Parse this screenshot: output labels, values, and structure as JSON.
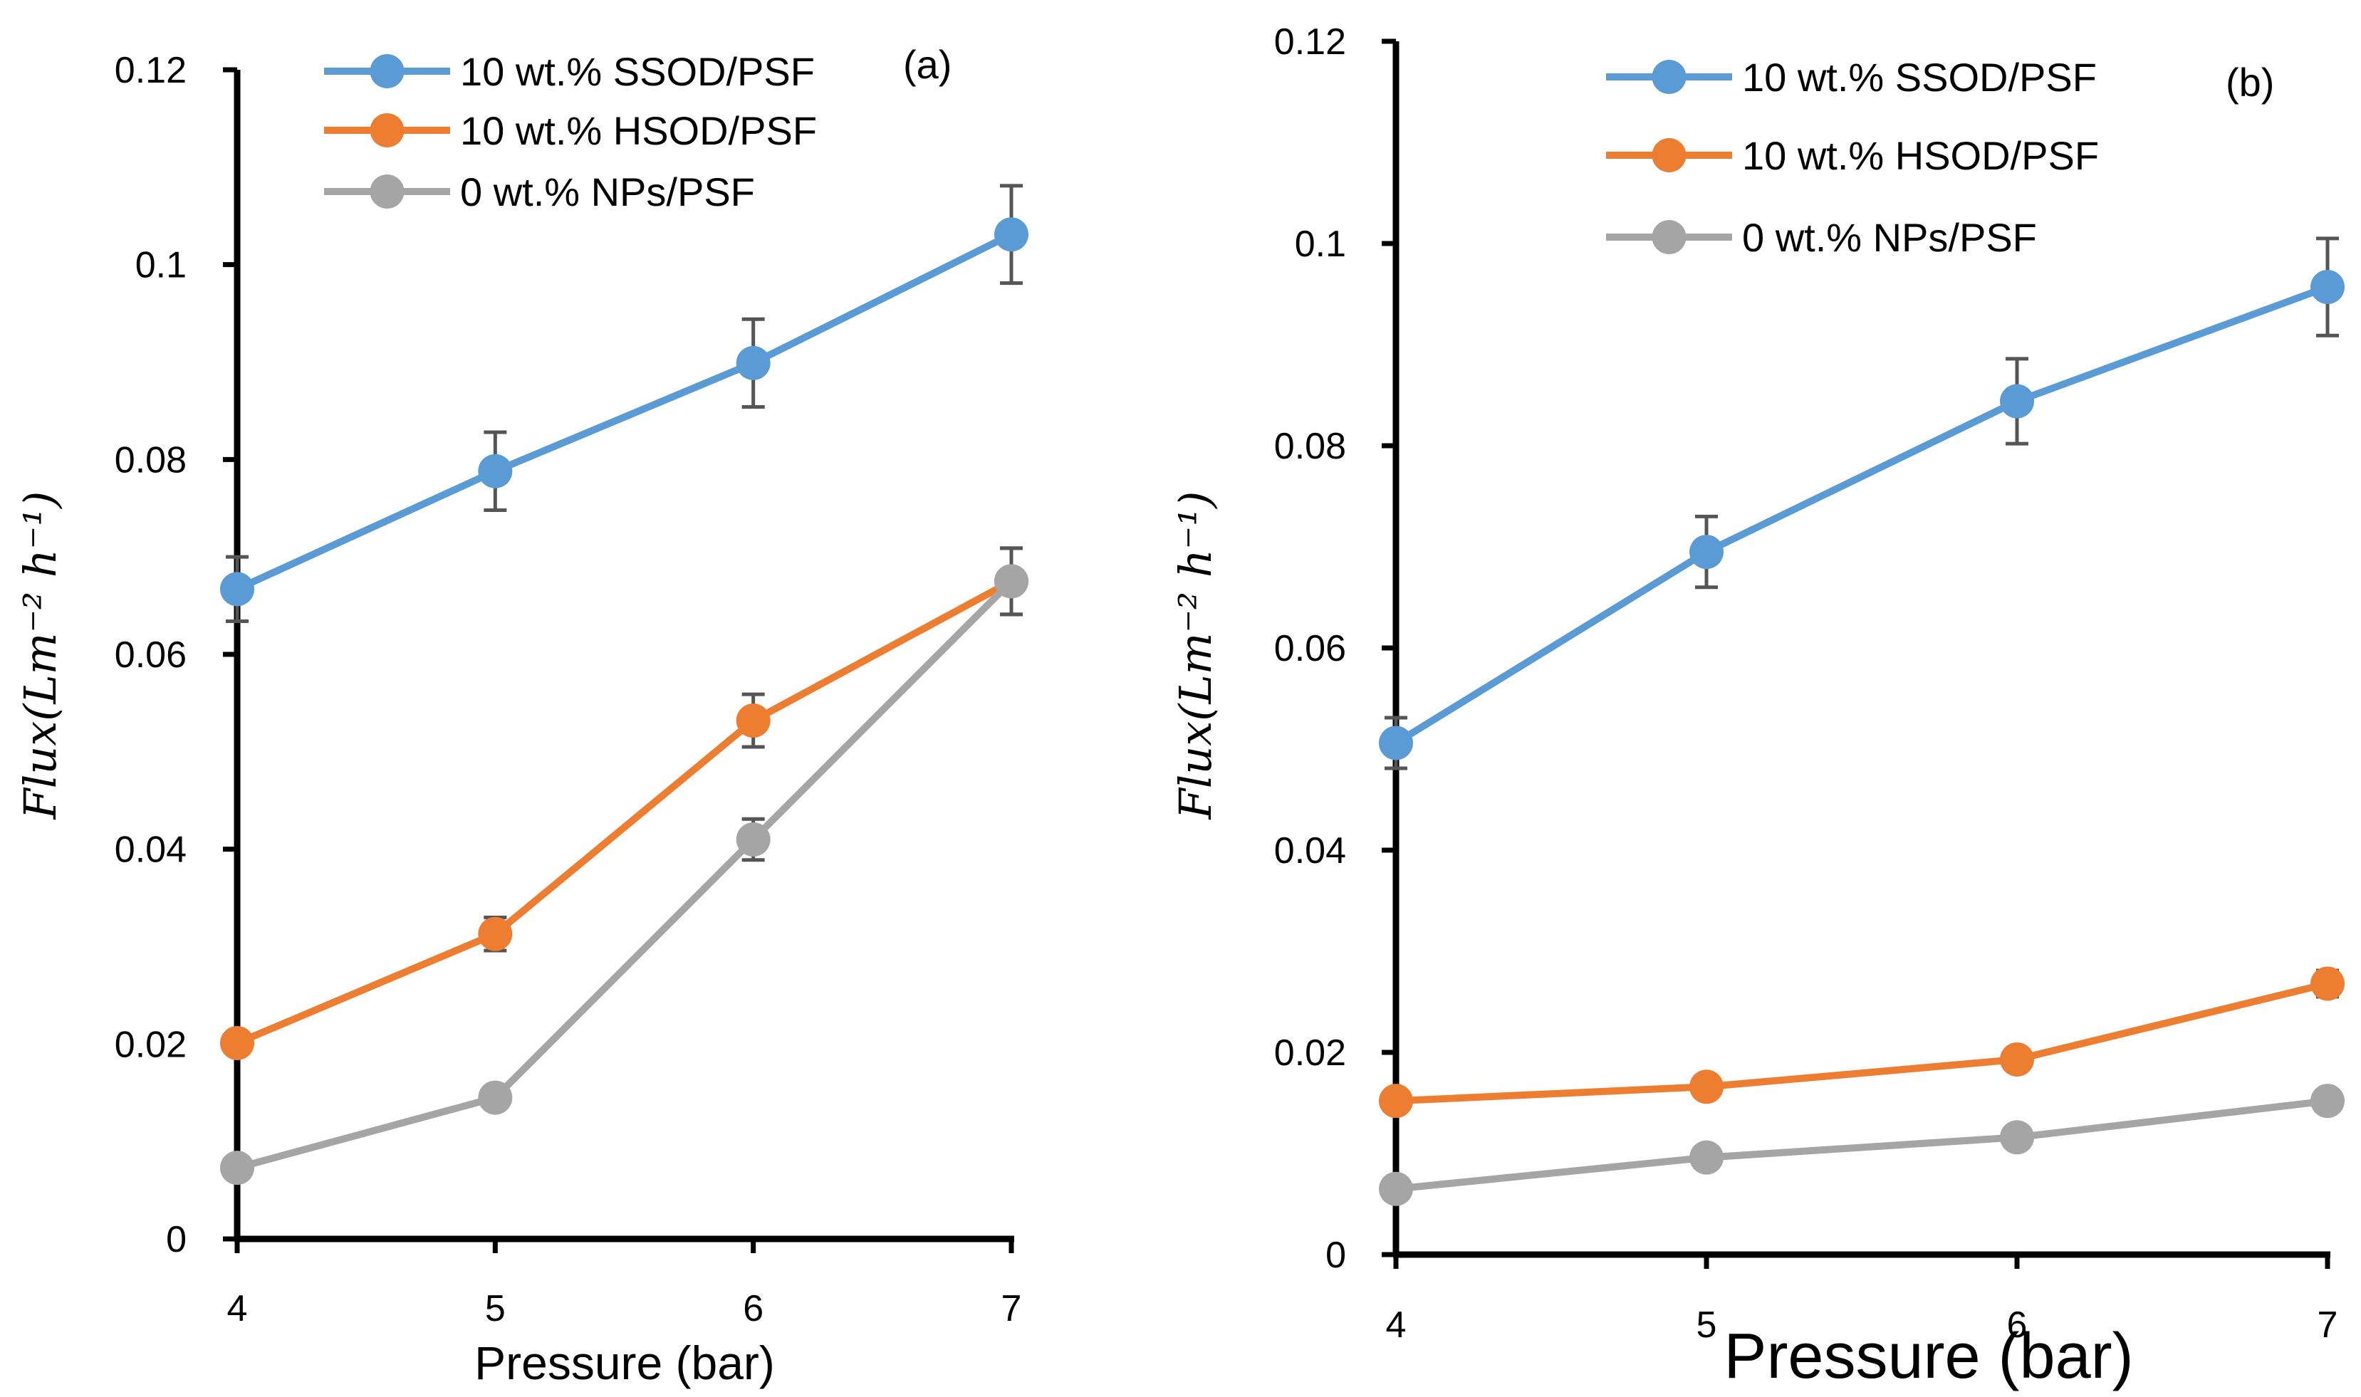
{
  "chart_data": [
    {
      "type": "line",
      "panel_label": "(a)",
      "xlabel": "Pressure (bar)",
      "ylabel": "Flux(Lm⁻² h⁻¹)",
      "x": [
        4,
        5,
        6,
        7
      ],
      "xticks": [
        "4",
        "5",
        "6",
        "7"
      ],
      "yticks": [
        "0",
        "0.02",
        "0.04",
        "0.06",
        "0.08",
        "0.1",
        "0.12"
      ],
      "xlim": [
        4,
        7
      ],
      "ylim": [
        0,
        0.12
      ],
      "legend_position": "top",
      "series": [
        {
          "name": "10 wt.% SSOD/PSF",
          "color": "#5b9bd5",
          "values": [
            0.0667,
            0.0788,
            0.0899,
            0.1031
          ],
          "errors": [
            0.0033,
            0.004,
            0.0045,
            0.005
          ]
        },
        {
          "name": "10 wt.% HSOD/PSF",
          "color": "#ed7d31",
          "values": [
            0.0201,
            0.0313,
            0.0532,
            0.0675
          ],
          "errors": [
            0.0004,
            0.0017,
            0.0027,
            0.0034
          ]
        },
        {
          "name": "0 wt.% NPs/PSF",
          "color": "#a5a5a5",
          "values": [
            0.0073,
            0.0145,
            0.041,
            0.0675
          ],
          "errors": [
            0.0004,
            0.0007,
            0.0021,
            0.0034
          ]
        }
      ]
    },
    {
      "type": "line",
      "panel_label": "(b)",
      "xlabel": "Pressure (bar)",
      "ylabel": "Flux(Lm⁻² h⁻¹)",
      "x": [
        4,
        5,
        6,
        7
      ],
      "xticks": [
        "4",
        "5",
        "6",
        "7"
      ],
      "yticks": [
        "0",
        "0.02",
        "0.04",
        "0.06",
        "0.08",
        "0.1",
        "0.12"
      ],
      "xlim": [
        4,
        7
      ],
      "ylim": [
        0,
        0.12
      ],
      "legend_position": "top",
      "series": [
        {
          "name": "10 wt.% SSOD/PSF",
          "color": "#5b9bd5",
          "values": [
            0.0506,
            0.0695,
            0.0844,
            0.0957
          ],
          "errors": [
            0.0025,
            0.0035,
            0.0042,
            0.0048
          ]
        },
        {
          "name": "10 wt.% HSOD/PSF",
          "color": "#ed7d31",
          "values": [
            0.0152,
            0.0166,
            0.0193,
            0.0268
          ],
          "errors": [
            0.0004,
            0.0004,
            0.0005,
            0.0013
          ]
        },
        {
          "name": "0 wt.% NPs/PSF",
          "color": "#a5a5a5",
          "values": [
            0.0065,
            0.0096,
            0.0116,
            0.0152
          ],
          "errors": [
            0.0002,
            0.0002,
            0.0003,
            0.0004
          ]
        }
      ]
    }
  ]
}
